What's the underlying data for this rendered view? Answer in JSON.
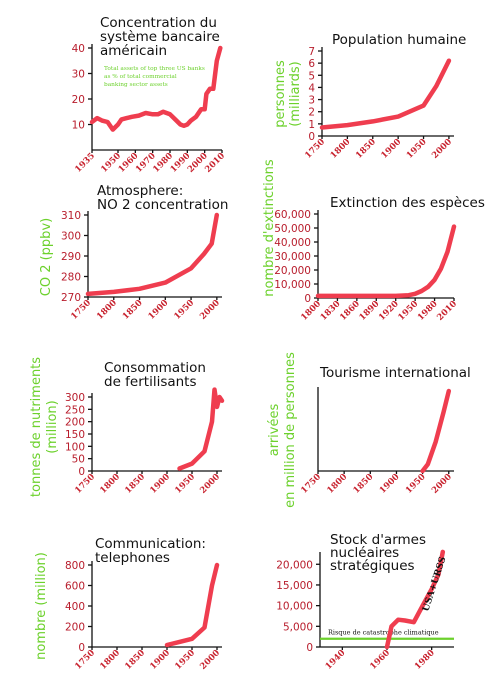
{
  "colors": {
    "series": "#ef3d4f",
    "label": "#6cd12c",
    "axis": "#111111",
    "ytick": "#b81d2c",
    "xtick": "#c8232f"
  },
  "chart_data": [
    {
      "id": "banking",
      "type": "line",
      "title": [
        "Concentration du",
        "système bancaire",
        "américain"
      ],
      "ylabel": [],
      "annotation": [
        "Total assets of top three US banks",
        "as % of total commercial",
        "banking sector assets"
      ],
      "xlim": [
        1935,
        2010
      ],
      "ylim": [
        0,
        40
      ],
      "xticks": [
        1935,
        1950,
        1960,
        1970,
        1980,
        1990,
        2000,
        2010
      ],
      "yticks": [
        10,
        20,
        30,
        40
      ],
      "x": [
        1935,
        1938,
        1941,
        1944,
        1947,
        1950,
        1952,
        1955,
        1958,
        1962,
        1966,
        1970,
        1973,
        1976,
        1980,
        1983,
        1986,
        1988,
        1990,
        1992,
        1995,
        1998,
        2000,
        2001,
        2003,
        2005,
        2007,
        2009
      ],
      "y": [
        11,
        12.5,
        11.5,
        11,
        8,
        10,
        12,
        12.5,
        13,
        13.5,
        14.5,
        14,
        14,
        15,
        14,
        12,
        10,
        9.5,
        10,
        11.5,
        13,
        16,
        16,
        22,
        24,
        24,
        35,
        40
      ]
    },
    {
      "id": "population",
      "type": "line",
      "title": [
        "Population humaine"
      ],
      "ylabel": [
        "personnes",
        "(milliards)"
      ],
      "xlim": [
        1750,
        2010
      ],
      "ylim": [
        0,
        7
      ],
      "xticks": [
        1750,
        1800,
        1850,
        1900,
        1950,
        2000
      ],
      "yticks": [
        0,
        1,
        2,
        3,
        4,
        5,
        6,
        7
      ],
      "x": [
        1750,
        1800,
        1850,
        1900,
        1950,
        1975,
        2000
      ],
      "y": [
        0.7,
        0.9,
        1.2,
        1.6,
        2.5,
        4.1,
        6.2
      ]
    },
    {
      "id": "co2",
      "type": "line",
      "title": [
        "Atmosphere:",
        "NO 2 concentration"
      ],
      "ylabel": [
        "CO 2  (ppbv)"
      ],
      "xlim": [
        1750,
        2010
      ],
      "ylim": [
        270,
        310
      ],
      "xticks": [
        1750,
        1800,
        1850,
        1900,
        1950,
        2000
      ],
      "yticks": [
        270,
        280,
        290,
        300,
        310
      ],
      "x": [
        1750,
        1800,
        1850,
        1900,
        1950,
        1975,
        1990,
        2000
      ],
      "y": [
        271.5,
        272.5,
        274,
        277,
        284,
        291,
        296,
        310
      ]
    },
    {
      "id": "extinction",
      "type": "line",
      "title": [
        "Extinction des espèces"
      ],
      "ylabel": [
        "nombre d'extinctions"
      ],
      "xlim": [
        1800,
        2010
      ],
      "ylim": [
        0,
        60000
      ],
      "xticks": [
        1800,
        1830,
        1860,
        1890,
        1920,
        1950,
        1980,
        2010
      ],
      "yticks": [
        0,
        10000,
        20000,
        30000,
        40000,
        50000,
        60000
      ],
      "yticklabels": [
        "0",
        "10,000",
        "20,000",
        "30,000",
        "40,000",
        "50,000",
        "60,000"
      ],
      "x": [
        1800,
        1830,
        1860,
        1890,
        1920,
        1940,
        1950,
        1960,
        1970,
        1980,
        1990,
        2000,
        2010
      ],
      "y": [
        1500,
        1500,
        1500,
        1500,
        1500,
        2000,
        3000,
        5000,
        8000,
        13000,
        21000,
        33000,
        51000
      ]
    },
    {
      "id": "fertilizer",
      "type": "line",
      "title": [
        "Consommation",
        "de fertilisants"
      ],
      "ylabel": [
        "tonnes de nutriments",
        "(million)"
      ],
      "xlim": [
        1750,
        2010
      ],
      "ylim": [
        0,
        300
      ],
      "xticks": [
        1750,
        1800,
        1850,
        1900,
        1950,
        2000
      ],
      "yticks": [
        0,
        50,
        100,
        150,
        200,
        250,
        300
      ],
      "x": [
        1925,
        1950,
        1960,
        1975,
        1990,
        1995,
        2000,
        2005,
        2010
      ],
      "y": [
        10,
        30,
        50,
        80,
        200,
        330,
        260,
        300,
        285
      ]
    },
    {
      "id": "tourism",
      "type": "line",
      "title": [
        "Tourisme international"
      ],
      "ylabel": [
        "arrivées",
        "en million de personnes"
      ],
      "xlim": [
        1750,
        2010
      ],
      "ylim": [
        0,
        600
      ],
      "xticks": [
        1750,
        1800,
        1850,
        1900,
        1950,
        2000
      ],
      "yticks": [],
      "x": [
        1950,
        1960,
        1975,
        1990,
        2000
      ],
      "y": [
        0,
        50,
        220,
        440,
        600
      ]
    },
    {
      "id": "telephones",
      "type": "line",
      "title": [
        "Communication:",
        "telephones"
      ],
      "ylabel": [
        "nombre (million)"
      ],
      "xlim": [
        1750,
        2010
      ],
      "ylim": [
        0,
        800
      ],
      "xticks": [
        1750,
        1800,
        1850,
        1900,
        1950,
        2000
      ],
      "yticks": [
        0,
        200,
        400,
        600,
        800
      ],
      "x": [
        1900,
        1925,
        1950,
        1975,
        1990,
        2000
      ],
      "y": [
        20,
        50,
        80,
        190,
        600,
        800
      ]
    },
    {
      "id": "nuclear",
      "type": "line",
      "title": [
        "Stock  d'armes",
        "nucléaires",
        "stratégiques"
      ],
      "ylabel": [],
      "series_label": "USA+URSS",
      "reference_label": "Risque de catastrophe climatique",
      "reference_value": 2000,
      "xlim": [
        1930,
        1990
      ],
      "ylim": [
        0,
        22000
      ],
      "xticks": [
        1940,
        1960,
        1980
      ],
      "yticks": [
        0,
        5000,
        10000,
        15000,
        20000
      ],
      "yticklabels": [
        "0",
        "5,000",
        "10,000",
        "15,000",
        "20,000"
      ],
      "x": [
        1960,
        1962,
        1965,
        1968,
        1972,
        1976,
        1980,
        1983,
        1985
      ],
      "y": [
        0,
        5000,
        6600,
        6400,
        6000,
        10000,
        14000,
        17500,
        23000
      ]
    }
  ]
}
